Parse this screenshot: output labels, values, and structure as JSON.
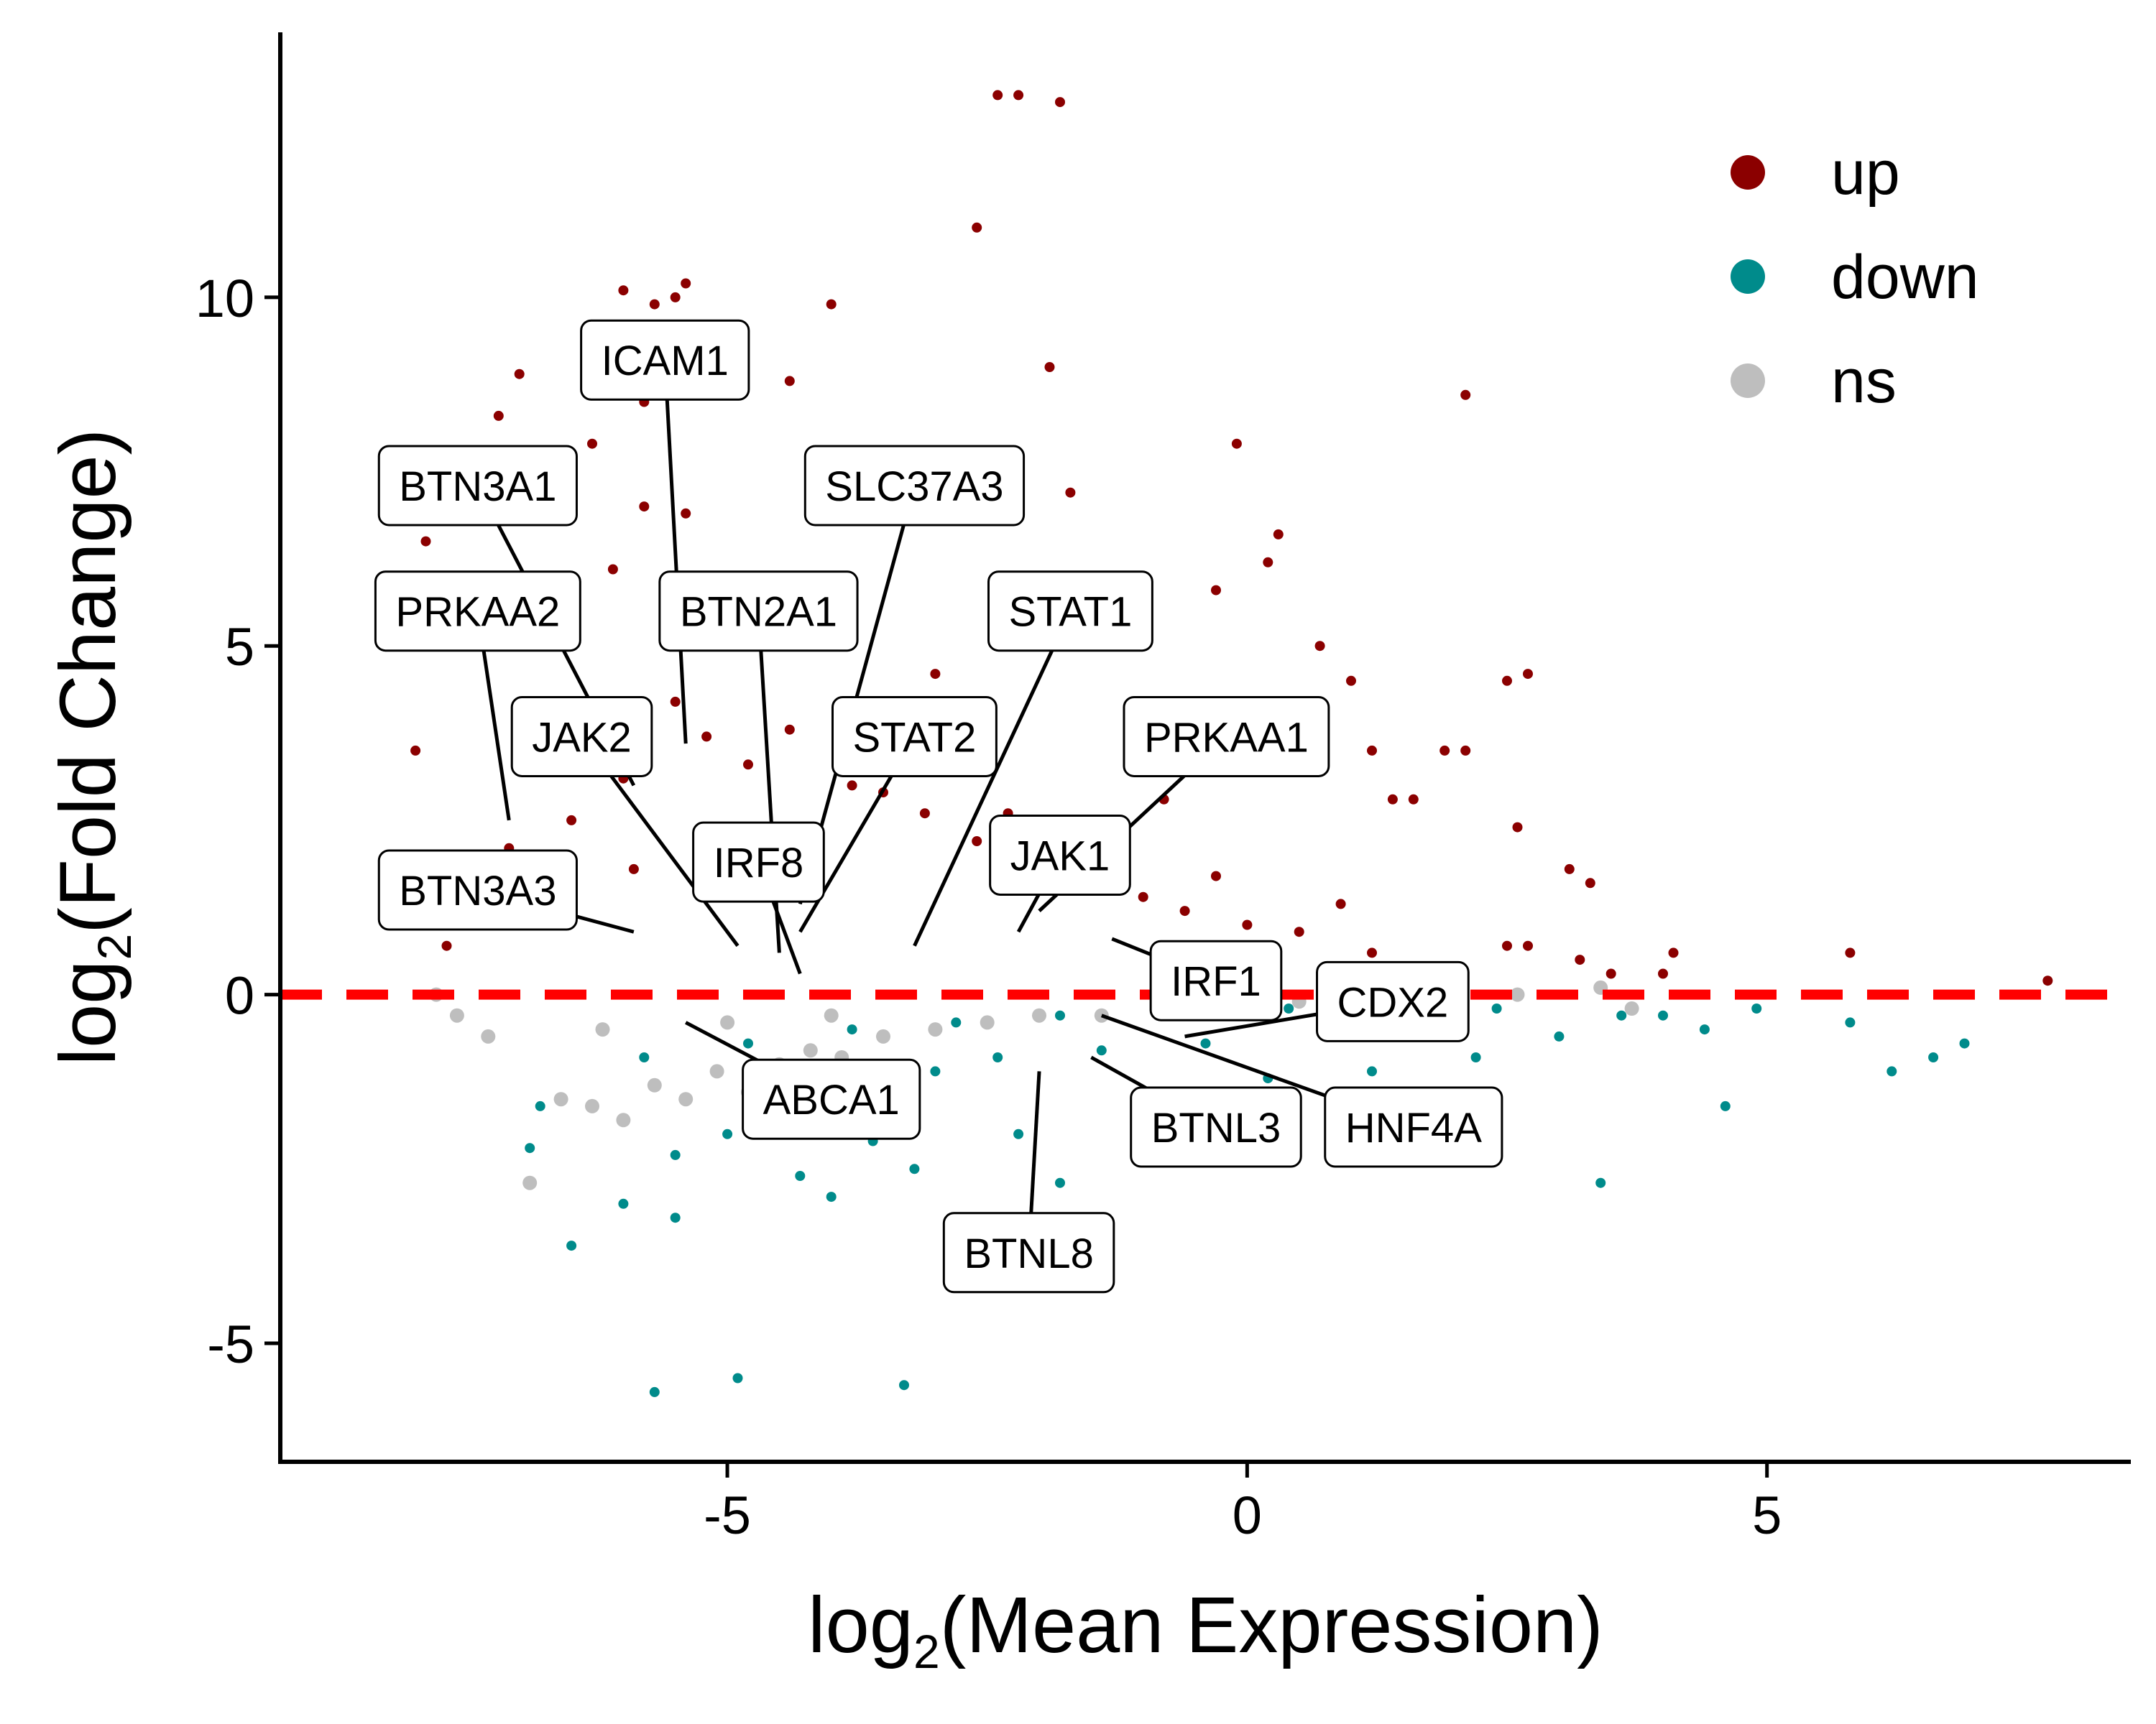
{
  "chart_data": {
    "type": "scatter",
    "title": "",
    "xlabel": {
      "prefix": "log",
      "subscript": "2",
      "suffix": "(Mean Expression)"
    },
    "ylabel": {
      "prefix": "log",
      "subscript": "2",
      "suffix": "(Fold Change)"
    },
    "xlim": [
      -9.3,
      8.5
    ],
    "ylim": [
      -6.7,
      13.8
    ],
    "x_ticks": [
      -5,
      0,
      5
    ],
    "y_ticks": [
      -5,
      0,
      5,
      10
    ],
    "x_tick_labels": [
      "-5",
      "0",
      "5"
    ],
    "y_tick_labels": [
      "-5",
      "0",
      "5",
      "10"
    ],
    "reference_line": {
      "y": 0,
      "style": "dashed",
      "color": "#ff0000"
    },
    "grid": false,
    "legend": {
      "placement": "top-right",
      "entries": [
        {
          "label": "up",
          "color": "#8b0000"
        },
        {
          "label": "down",
          "color": "#008b8b"
        },
        {
          "label": "ns",
          "color": "#bebebe"
        }
      ]
    },
    "series": [
      {
        "name": "up",
        "color": "#8b0000",
        "points": [
          [
            -2.4,
            12.9
          ],
          [
            -2.2,
            12.9
          ],
          [
            -1.8,
            12.8
          ],
          [
            -2.6,
            11.0
          ],
          [
            -6.0,
            10.1
          ],
          [
            -5.4,
            10.2
          ],
          [
            -5.5,
            10.0
          ],
          [
            -5.7,
            9.9
          ],
          [
            -4.0,
            9.9
          ],
          [
            -1.9,
            9.0
          ],
          [
            -7.0,
            8.9
          ],
          [
            -5.3,
            8.6
          ],
          [
            -4.4,
            8.8
          ],
          [
            -7.2,
            8.3
          ],
          [
            2.1,
            8.6
          ],
          [
            -5.8,
            8.5
          ],
          [
            -0.1,
            7.9
          ],
          [
            -6.3,
            7.9
          ],
          [
            -7.0,
            7.5
          ],
          [
            -4.1,
            7.8
          ],
          [
            -1.7,
            7.2
          ],
          [
            -5.4,
            6.9
          ],
          [
            -7.9,
            6.5
          ],
          [
            0.2,
            6.2
          ],
          [
            0.3,
            6.6
          ],
          [
            -5.8,
            7.0
          ],
          [
            -7.5,
            6.0
          ],
          [
            -6.1,
            6.1
          ],
          [
            -0.3,
            5.8
          ],
          [
            0.7,
            5.0
          ],
          [
            -3.0,
            4.6
          ],
          [
            1.0,
            4.5
          ],
          [
            2.5,
            4.5
          ],
          [
            2.7,
            4.6
          ],
          [
            -0.7,
            4.0
          ],
          [
            0.3,
            3.9
          ],
          [
            1.2,
            3.5
          ],
          [
            -8.0,
            3.5
          ],
          [
            1.9,
            3.5
          ],
          [
            2.1,
            3.5
          ],
          [
            1.4,
            2.8
          ],
          [
            1.6,
            2.8
          ],
          [
            -0.8,
            2.8
          ],
          [
            2.6,
            2.4
          ],
          [
            3.1,
            1.8
          ],
          [
            3.3,
            1.6
          ],
          [
            2.5,
            0.7
          ],
          [
            2.7,
            0.7
          ],
          [
            3.2,
            0.5
          ],
          [
            3.5,
            0.3
          ],
          [
            4.0,
            0.3
          ],
          [
            4.1,
            0.6
          ],
          [
            5.8,
            0.6
          ],
          [
            7.7,
            0.2
          ],
          [
            -7.7,
            0.7
          ],
          [
            -7.4,
            1.1
          ],
          [
            -6.5,
            2.5
          ],
          [
            -6.0,
            3.1
          ],
          [
            -5.2,
            3.7
          ],
          [
            -4.4,
            3.8
          ],
          [
            -3.8,
            3.0
          ],
          [
            -3.1,
            2.6
          ],
          [
            -2.6,
            2.2
          ],
          [
            -2.0,
            1.9
          ],
          [
            -1.4,
            1.7
          ],
          [
            -1.0,
            1.4
          ],
          [
            -0.6,
            1.2
          ],
          [
            0.0,
            1.0
          ],
          [
            0.5,
            0.9
          ],
          [
            1.2,
            0.6
          ],
          [
            1.8,
            0.4
          ],
          [
            -5.5,
            4.2
          ],
          [
            -4.8,
            3.3
          ],
          [
            -6.8,
            3.7
          ],
          [
            -7.1,
            2.1
          ],
          [
            -3.5,
            2.9
          ],
          [
            -2.3,
            2.6
          ],
          [
            -1.2,
            2.2
          ],
          [
            -0.3,
            1.7
          ],
          [
            0.9,
            1.3
          ],
          [
            -5.9,
            1.8
          ],
          [
            -4.2,
            1.5
          ]
        ]
      },
      {
        "name": "down",
        "color": "#008b8b",
        "points": [
          [
            -5.7,
            -5.7
          ],
          [
            -4.9,
            -5.5
          ],
          [
            -3.3,
            -5.6
          ],
          [
            -6.5,
            -3.6
          ],
          [
            -5.5,
            -3.2
          ],
          [
            -6.0,
            -3.0
          ],
          [
            -4.0,
            -2.9
          ],
          [
            -1.8,
            -2.7
          ],
          [
            3.4,
            -2.7
          ],
          [
            -5.5,
            -2.3
          ],
          [
            -4.3,
            -2.6
          ],
          [
            -3.2,
            -2.5
          ],
          [
            -6.9,
            -2.2
          ],
          [
            -5.0,
            -2.0
          ],
          [
            -3.6,
            -2.1
          ],
          [
            -2.2,
            -2.0
          ],
          [
            4.6,
            -1.6
          ],
          [
            6.2,
            -1.1
          ],
          [
            6.6,
            -0.9
          ],
          [
            -6.8,
            -1.6
          ],
          [
            -1.0,
            -1.5
          ],
          [
            0.2,
            -1.2
          ],
          [
            1.2,
            -1.1
          ],
          [
            2.2,
            -0.9
          ],
          [
            3.0,
            -0.6
          ],
          [
            3.6,
            -0.3
          ],
          [
            4.4,
            -0.5
          ],
          [
            5.8,
            -0.4
          ],
          [
            6.9,
            -0.7
          ],
          [
            -4.2,
            -1.3
          ],
          [
            -3.0,
            -1.1
          ],
          [
            -2.4,
            -0.9
          ],
          [
            -1.4,
            -0.8
          ],
          [
            -0.4,
            -0.7
          ],
          [
            0.8,
            -0.6
          ],
          [
            1.6,
            -0.5
          ],
          [
            -5.8,
            -0.9
          ],
          [
            -4.8,
            -0.7
          ],
          [
            -3.8,
            -0.5
          ],
          [
            -2.8,
            -0.4
          ],
          [
            -1.8,
            -0.3
          ],
          [
            -0.8,
            -0.3
          ],
          [
            0.4,
            -0.2
          ],
          [
            1.4,
            -0.3
          ],
          [
            2.4,
            -0.2
          ],
          [
            4.0,
            -0.3
          ],
          [
            4.9,
            -0.2
          ]
        ]
      },
      {
        "name": "ns",
        "color": "#bebebe",
        "points": [
          [
            -6.9,
            -2.7
          ],
          [
            -6.6,
            -1.5
          ],
          [
            -6.3,
            -1.6
          ],
          [
            -6.0,
            -1.8
          ],
          [
            -5.7,
            -1.3
          ],
          [
            -5.4,
            -1.5
          ],
          [
            -5.1,
            -1.1
          ],
          [
            -4.8,
            -1.4
          ],
          [
            -4.5,
            -1.0
          ],
          [
            -4.2,
            -0.8
          ],
          [
            -3.9,
            -0.9
          ],
          [
            -3.5,
            -0.6
          ],
          [
            -3.0,
            -0.5
          ],
          [
            -2.5,
            -0.4
          ],
          [
            -2.0,
            -0.3
          ],
          [
            -1.4,
            -0.3
          ],
          [
            -0.8,
            -0.2
          ],
          [
            -0.2,
            -0.2
          ],
          [
            0.5,
            -0.1
          ],
          [
            1.2,
            -0.1
          ],
          [
            1.9,
            -0.1
          ],
          [
            2.6,
            0.0
          ],
          [
            3.4,
            0.1
          ],
          [
            3.7,
            -0.2
          ],
          [
            -7.3,
            -0.6
          ],
          [
            -7.6,
            -0.3
          ],
          [
            -7.8,
            0.0
          ],
          [
            -6.2,
            -0.5
          ],
          [
            -5.0,
            -0.4
          ],
          [
            -4.0,
            -0.3
          ]
        ]
      }
    ],
    "annotations": [
      {
        "label": "ICAM1",
        "box": [
          -5.6,
          9.1
        ],
        "anchor": [
          -5.4,
          3.6
        ]
      },
      {
        "label": "BTN3A1",
        "box": [
          -7.4,
          7.3
        ],
        "anchor": [
          -5.9,
          3.0
        ]
      },
      {
        "label": "SLC37A3",
        "box": [
          -3.2,
          7.3
        ],
        "anchor": [
          -4.3,
          1.3
        ]
      },
      {
        "label": "PRKAA2",
        "box": [
          -7.4,
          5.5
        ],
        "anchor": [
          -7.1,
          2.5
        ]
      },
      {
        "label": "BTN2A1",
        "box": [
          -4.7,
          5.5
        ],
        "anchor": [
          -4.5,
          0.6
        ]
      },
      {
        "label": "STAT1",
        "box": [
          -1.7,
          5.5
        ],
        "anchor": [
          -3.2,
          0.7
        ]
      },
      {
        "label": "JAK2",
        "box": [
          -6.4,
          3.7
        ],
        "anchor": [
          -4.9,
          0.7
        ]
      },
      {
        "label": "STAT2",
        "box": [
          -3.2,
          3.7
        ],
        "anchor": [
          -4.3,
          0.9
        ]
      },
      {
        "label": "PRKAA1",
        "box": [
          -0.2,
          3.7
        ],
        "anchor": [
          -2.0,
          1.2
        ]
      },
      {
        "label": "IRF8",
        "box": [
          -4.7,
          1.9
        ],
        "anchor": [
          -4.3,
          0.3
        ]
      },
      {
        "label": "JAK1",
        "box": [
          -1.8,
          2.0
        ],
        "anchor": [
          -2.2,
          0.9
        ]
      },
      {
        "label": "BTN3A3",
        "box": [
          -7.4,
          1.5
        ],
        "anchor": [
          -5.9,
          0.9
        ]
      },
      {
        "label": "IRF1",
        "box": [
          -0.3,
          0.2
        ],
        "anchor": [
          -1.3,
          0.8
        ]
      },
      {
        "label": "CDX2",
        "box": [
          1.4,
          -0.1
        ],
        "anchor": [
          -0.6,
          -0.6
        ]
      },
      {
        "label": "ABCA1",
        "box": [
          -4.0,
          -1.5
        ],
        "anchor": [
          -5.4,
          -0.4
        ]
      },
      {
        "label": "BTNL3",
        "box": [
          -0.3,
          -1.9
        ],
        "anchor": [
          -1.5,
          -0.9
        ]
      },
      {
        "label": "HNF4A",
        "box": [
          1.6,
          -1.9
        ],
        "anchor": [
          -1.4,
          -0.3
        ]
      },
      {
        "label": "BTNL8",
        "box": [
          -2.1,
          -3.7
        ],
        "anchor": [
          -2.0,
          -1.1
        ]
      }
    ]
  }
}
